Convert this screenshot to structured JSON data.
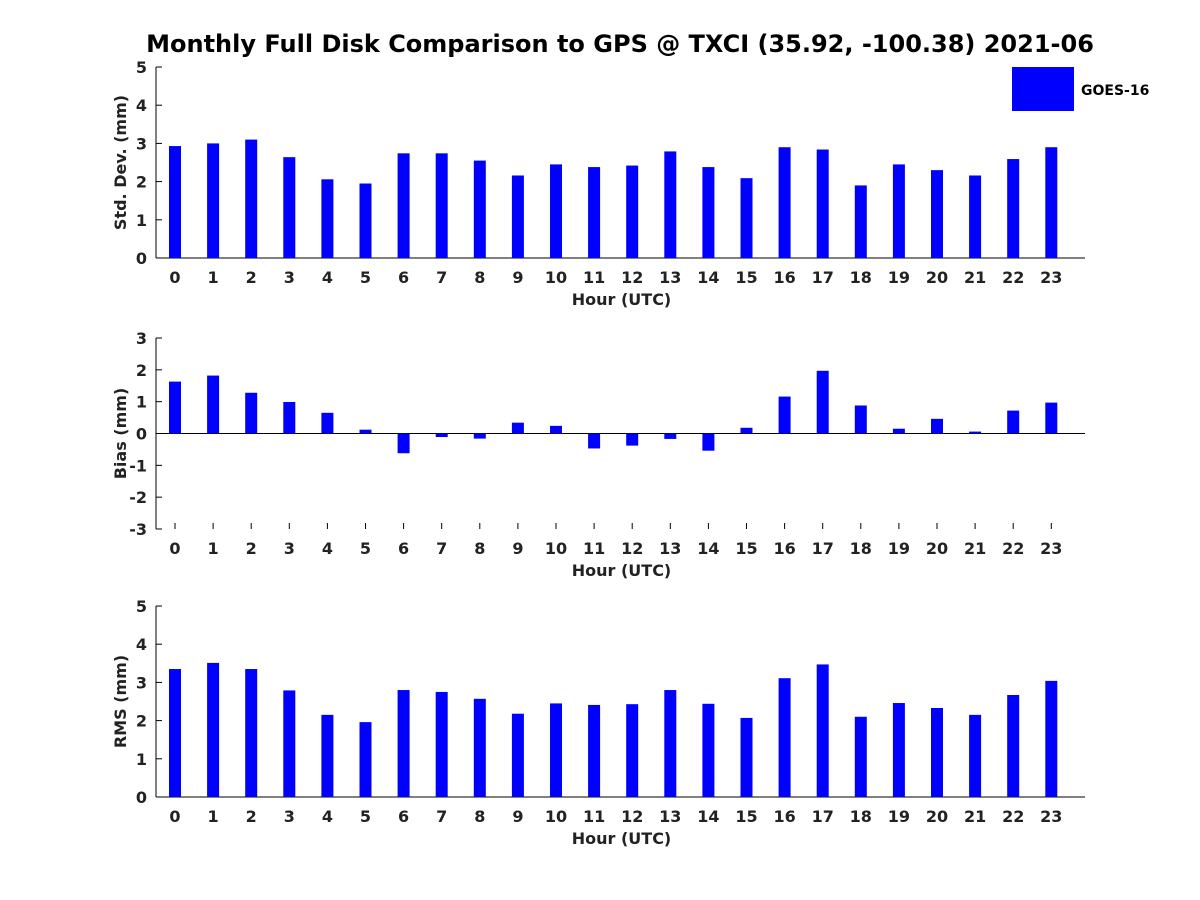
{
  "figure": {
    "title": "Monthly Full Disk Comparison to GPS @ TXCI (35.92, -100.38) 2021-06",
    "bar_color": "#0000ff",
    "legend": {
      "entries": [
        "GOES-16"
      ],
      "placement": "top-right"
    }
  },
  "chart_data": [
    {
      "type": "bar",
      "ylabel": "Std. Dev. (mm)",
      "xlabel": "Hour (UTC)",
      "ylim": [
        0,
        5
      ],
      "yticks": [
        0,
        1,
        2,
        3,
        4,
        5
      ],
      "categories": [
        "0",
        "1",
        "2",
        "3",
        "4",
        "5",
        "6",
        "7",
        "8",
        "9",
        "10",
        "11",
        "12",
        "13",
        "14",
        "15",
        "16",
        "17",
        "18",
        "19",
        "20",
        "21",
        "22",
        "23"
      ],
      "series": [
        {
          "name": "GOES-16",
          "values": [
            2.93,
            3.0,
            3.1,
            2.64,
            2.06,
            1.95,
            2.74,
            2.74,
            2.55,
            2.16,
            2.45,
            2.38,
            2.42,
            2.79,
            2.38,
            2.09,
            2.9,
            2.84,
            1.9,
            2.45,
            2.3,
            2.16,
            2.59,
            2.9
          ]
        }
      ],
      "grid": false
    },
    {
      "type": "bar",
      "ylabel": "Bias (mm)",
      "xlabel": "Hour (UTC)",
      "ylim": [
        -3,
        3
      ],
      "yticks": [
        -3,
        -2,
        -1,
        0,
        1,
        2,
        3
      ],
      "categories": [
        "0",
        "1",
        "2",
        "3",
        "4",
        "5",
        "6",
        "7",
        "8",
        "9",
        "10",
        "11",
        "12",
        "13",
        "14",
        "15",
        "16",
        "17",
        "18",
        "19",
        "20",
        "21",
        "22",
        "23"
      ],
      "series": [
        {
          "name": "GOES-16",
          "values": [
            1.63,
            1.82,
            1.28,
            0.99,
            0.65,
            0.12,
            -0.62,
            -0.11,
            -0.16,
            0.34,
            0.24,
            -0.47,
            -0.38,
            -0.17,
            -0.54,
            0.18,
            1.16,
            1.97,
            0.88,
            0.15,
            0.46,
            0.06,
            0.72,
            0.97
          ]
        }
      ],
      "grid": false
    },
    {
      "type": "bar",
      "ylabel": "RMS (mm)",
      "xlabel": "Hour (UTC)",
      "ylim": [
        0,
        5
      ],
      "yticks": [
        0,
        1,
        2,
        3,
        4,
        5
      ],
      "categories": [
        "0",
        "1",
        "2",
        "3",
        "4",
        "5",
        "6",
        "7",
        "8",
        "9",
        "10",
        "11",
        "12",
        "13",
        "14",
        "15",
        "16",
        "17",
        "18",
        "19",
        "20",
        "21",
        "22",
        "23"
      ],
      "series": [
        {
          "name": "GOES-16",
          "values": [
            3.35,
            3.51,
            3.35,
            2.79,
            2.15,
            1.96,
            2.8,
            2.75,
            2.57,
            2.18,
            2.45,
            2.41,
            2.43,
            2.8,
            2.44,
            2.07,
            3.11,
            3.47,
            2.1,
            2.46,
            2.33,
            2.15,
            2.67,
            3.04
          ]
        }
      ],
      "grid": false
    }
  ]
}
